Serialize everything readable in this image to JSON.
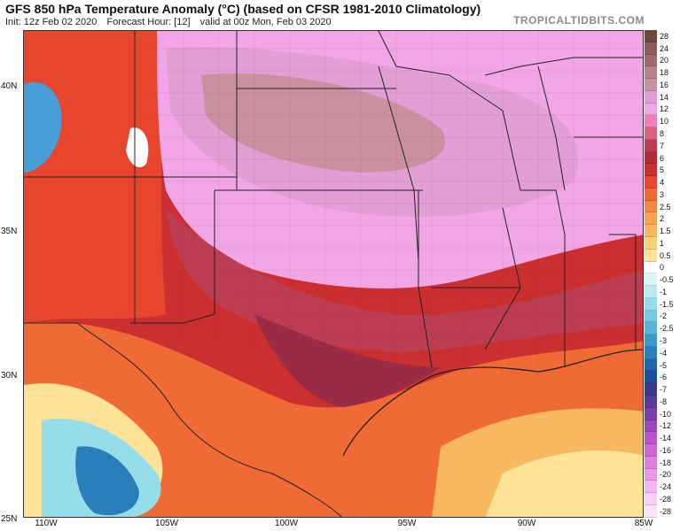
{
  "header": {
    "title": "GFS 850 hPa Temperature Anomaly (°C) (based on CFSR 1981-2010 Climatology)",
    "init": "Init: 12z Feb 02 2020",
    "forecast_hour": "Forecast Hour: [12]",
    "valid": "valid at 00z Mon, Feb 03 2020",
    "brand": "TROPICALTIDBITS.COM"
  },
  "axes": {
    "lat_labels": [
      "40N",
      "35N",
      "30N",
      "25N"
    ],
    "lon_labels": [
      "110W",
      "105W",
      "100W",
      "95W",
      "90W",
      "85W"
    ]
  },
  "colorbar": {
    "labels": [
      "28",
      "24",
      "20",
      "18",
      "16",
      "14",
      "12",
      "10",
      "8",
      "7",
      "6",
      "5",
      "4",
      "3",
      "2.5",
      "2",
      "1.5",
      "1",
      "0.5",
      "0",
      "-0.5",
      "-1",
      "-1.5",
      "-2",
      "-2.5",
      "-3",
      "-4",
      "-5",
      "-6",
      "-7",
      "-8",
      "-10",
      "-12",
      "-14",
      "-16",
      "-18",
      "-20",
      "-24",
      "-28",
      "-28"
    ],
    "colors": [
      "#6b4a3a",
      "#8a5d56",
      "#a06b6a",
      "#b88488",
      "#c991a0",
      "#e39ed5",
      "#f2a6e6",
      "#f07fb9",
      "#d9637e",
      "#bc3d52",
      "#b32b36",
      "#cc2f2f",
      "#e8452e",
      "#f06a36",
      "#f38a43",
      "#f6a250",
      "#f8b860",
      "#fbd175",
      "#fde396",
      "#ffffff",
      "#d9f6f4",
      "#b7ecef",
      "#95dde8",
      "#73cbe0",
      "#56b6d6",
      "#3b9bc8",
      "#2a7fbb",
      "#2264aa",
      "#1c4d98",
      "#3a3a8a",
      "#5a3a9a",
      "#7a3fac",
      "#9a48bc",
      "#b955c8",
      "#cf66d3",
      "#df7fdf",
      "#eb9ae8",
      "#f3b6f0",
      "#f8cff5",
      "#fbe3f9"
    ]
  },
  "map_legend_colors": {
    "deep_anom": "#9a5a86",
    "pink_anom": "#e39ed5",
    "light_pink": "#f2a6e6",
    "rose": "#bc3d52",
    "red": "#cc2f2f",
    "orange": "#f06a36",
    "light_orange": "#f8b860",
    "yellow": "#fde396",
    "cold": "#4a9ed8",
    "outline": "#222222"
  }
}
